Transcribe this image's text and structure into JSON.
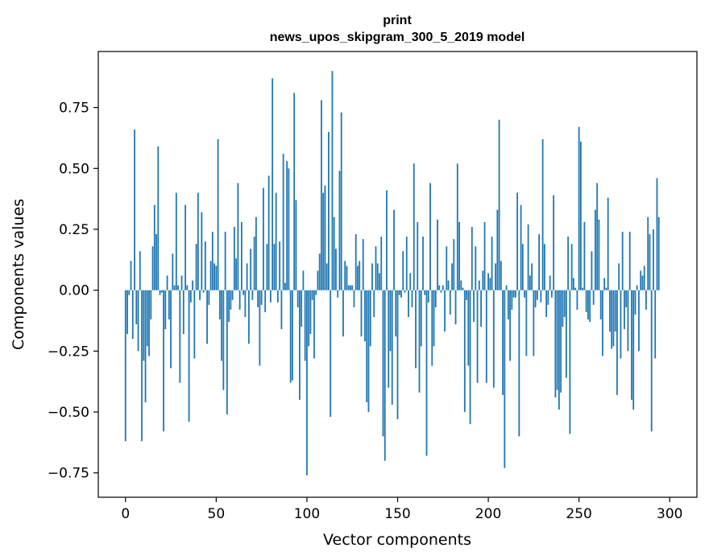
{
  "chart_data": {
    "type": "bar",
    "title": "print",
    "subtitle": "news_upos_skipgram_300_5_2019 model",
    "xlabel": "Vector components",
    "ylabel": "Components values",
    "xlim": [
      -15,
      315
    ],
    "ylim": [
      -0.85,
      0.98
    ],
    "xticks": [
      0,
      50,
      100,
      150,
      200,
      250,
      300
    ],
    "yticks": [
      -0.75,
      -0.5,
      -0.25,
      0.0,
      0.25,
      0.5,
      0.75
    ],
    "ytick_labels": [
      "−0.75",
      "−0.50",
      "−0.25",
      "0.00",
      "0.25",
      "0.50",
      "0.75"
    ],
    "grid": false,
    "legend": "none",
    "bar_color": "#1f77b4",
    "values": [
      -0.62,
      -0.18,
      -0.02,
      0.12,
      -0.2,
      0.66,
      -0.14,
      -0.25,
      0.16,
      -0.62,
      -0.29,
      -0.46,
      -0.23,
      -0.27,
      -0.12,
      0.18,
      0.35,
      0.23,
      0.59,
      -0.02,
      -0.01,
      -0.58,
      -0.16,
      0.06,
      -0.12,
      -0.32,
      0.15,
      0.02,
      0.4,
      0.02,
      -0.38,
      0.06,
      -0.18,
      0.35,
      0.02,
      -0.54,
      -0.05,
      0.04,
      -0.28,
      0.19,
      0.4,
      -0.04,
      0.32,
      -0.01,
      0.2,
      -0.22,
      -0.06,
      0.12,
      0.24,
      0.11,
      0.1,
      0.62,
      -0.12,
      -0.29,
      -0.41,
      0.24,
      -0.51,
      -0.13,
      -0.08,
      -0.04,
      0.26,
      0.13,
      0.44,
      -0.08,
      0.28,
      -0.02,
      -0.11,
      0.11,
      -0.22,
      0.17,
      -0.04,
      0.22,
      0.3,
      -0.07,
      -0.31,
      -0.06,
      0.42,
      -0.09,
      0.19,
      0.47,
      -0.05,
      0.87,
      0.19,
      0.4,
      -0.05,
      0.2,
      -0.16,
      0.56,
      0.03,
      0.53,
      0.5,
      -0.38,
      -0.37,
      0.81,
      0.37,
      -0.07,
      -0.45,
      -0.15,
      0.08,
      -0.29,
      -0.76,
      -0.23,
      -0.18,
      -0.04,
      -0.28,
      -0.02,
      0.08,
      0.15,
      0.78,
      0.4,
      0.43,
      0.11,
      0.65,
      -0.52,
      0.9,
      0.3,
      0.17,
      -0.03,
      0.49,
      0.73,
      -0.19,
      0.12,
      0.1,
      0.02,
      0.02,
      0.02,
      -0.07,
      0.23,
      0.1,
      0.12,
      -0.19,
      0.21,
      -0.21,
      -0.46,
      -0.5,
      -0.23,
      0.11,
      -0.11,
      0.18,
      0.11,
      0.07,
      0.22,
      -0.6,
      -0.7,
      0.41,
      -0.4,
      -0.25,
      -0.47,
      0.33,
      -0.19,
      -0.53,
      -0.02,
      -0.03,
      0.16,
      -0.01,
      0.22,
      -0.11,
      0.07,
      -0.07,
      0.52,
      -0.32,
      0.28,
      -0.42,
      -0.23,
      0.22,
      -0.02,
      -0.68,
      -0.05,
      0.44,
      -0.31,
      -0.23,
      -0.07,
      0.29,
      0.02,
      -0.01,
      0.02,
      -0.17,
      0.18,
      0.04,
      -0.1,
      0.11,
      0.21,
      -0.14,
      0.52,
      0.28,
      0.04,
      0.01,
      -0.5,
      -0.04,
      -0.31,
      -0.55,
      0.26,
      -0.13,
      0.18,
      -0.38,
      0.04,
      -0.15,
      0.08,
      0.28,
      -0.38,
      0.07,
      0.05,
      0.22,
      -0.4,
      0.11,
      0.33,
      0.7,
      0.12,
      -0.43,
      -0.73,
      0.02,
      -0.12,
      -0.29,
      -0.08,
      -0.03,
      -0.03,
      0.4,
      -0.6,
      0.35,
      0.19,
      -0.03,
      -0.27,
      0.27,
      0.06,
      0.11,
      -0.27,
      -0.07,
      -0.04,
      0.23,
      -0.05,
      0.62,
      0.19,
      -0.11,
      -0.06,
      0.06,
      -0.03,
      0.39,
      -0.44,
      -0.41,
      -0.49,
      -0.42,
      -0.15,
      -0.11,
      -0.36,
      0.22,
      -0.59,
      0.19,
      0.05,
      0.01,
      -0.08,
      0.67,
      0.61,
      0.01,
      0.28,
      -0.09,
      -0.12,
      -0.13,
      0.16,
      -0.06,
      0.33,
      0.44,
      0.29,
      -0.12,
      -0.27,
      0.05,
      0.01,
      0.38,
      -0.17,
      -0.24,
      -0.23,
      -0.17,
      -0.43,
      0.11,
      -0.28,
      0.24,
      -0.16,
      -0.07,
      -0.25,
      0.24,
      -0.45,
      -0.49,
      -0.1,
      0.02,
      -0.25,
      0.08,
      0.06,
      0.1,
      -0.08,
      0.3,
      0.23,
      -0.58,
      0.25,
      -0.28,
      0.46,
      0.3
    ]
  }
}
